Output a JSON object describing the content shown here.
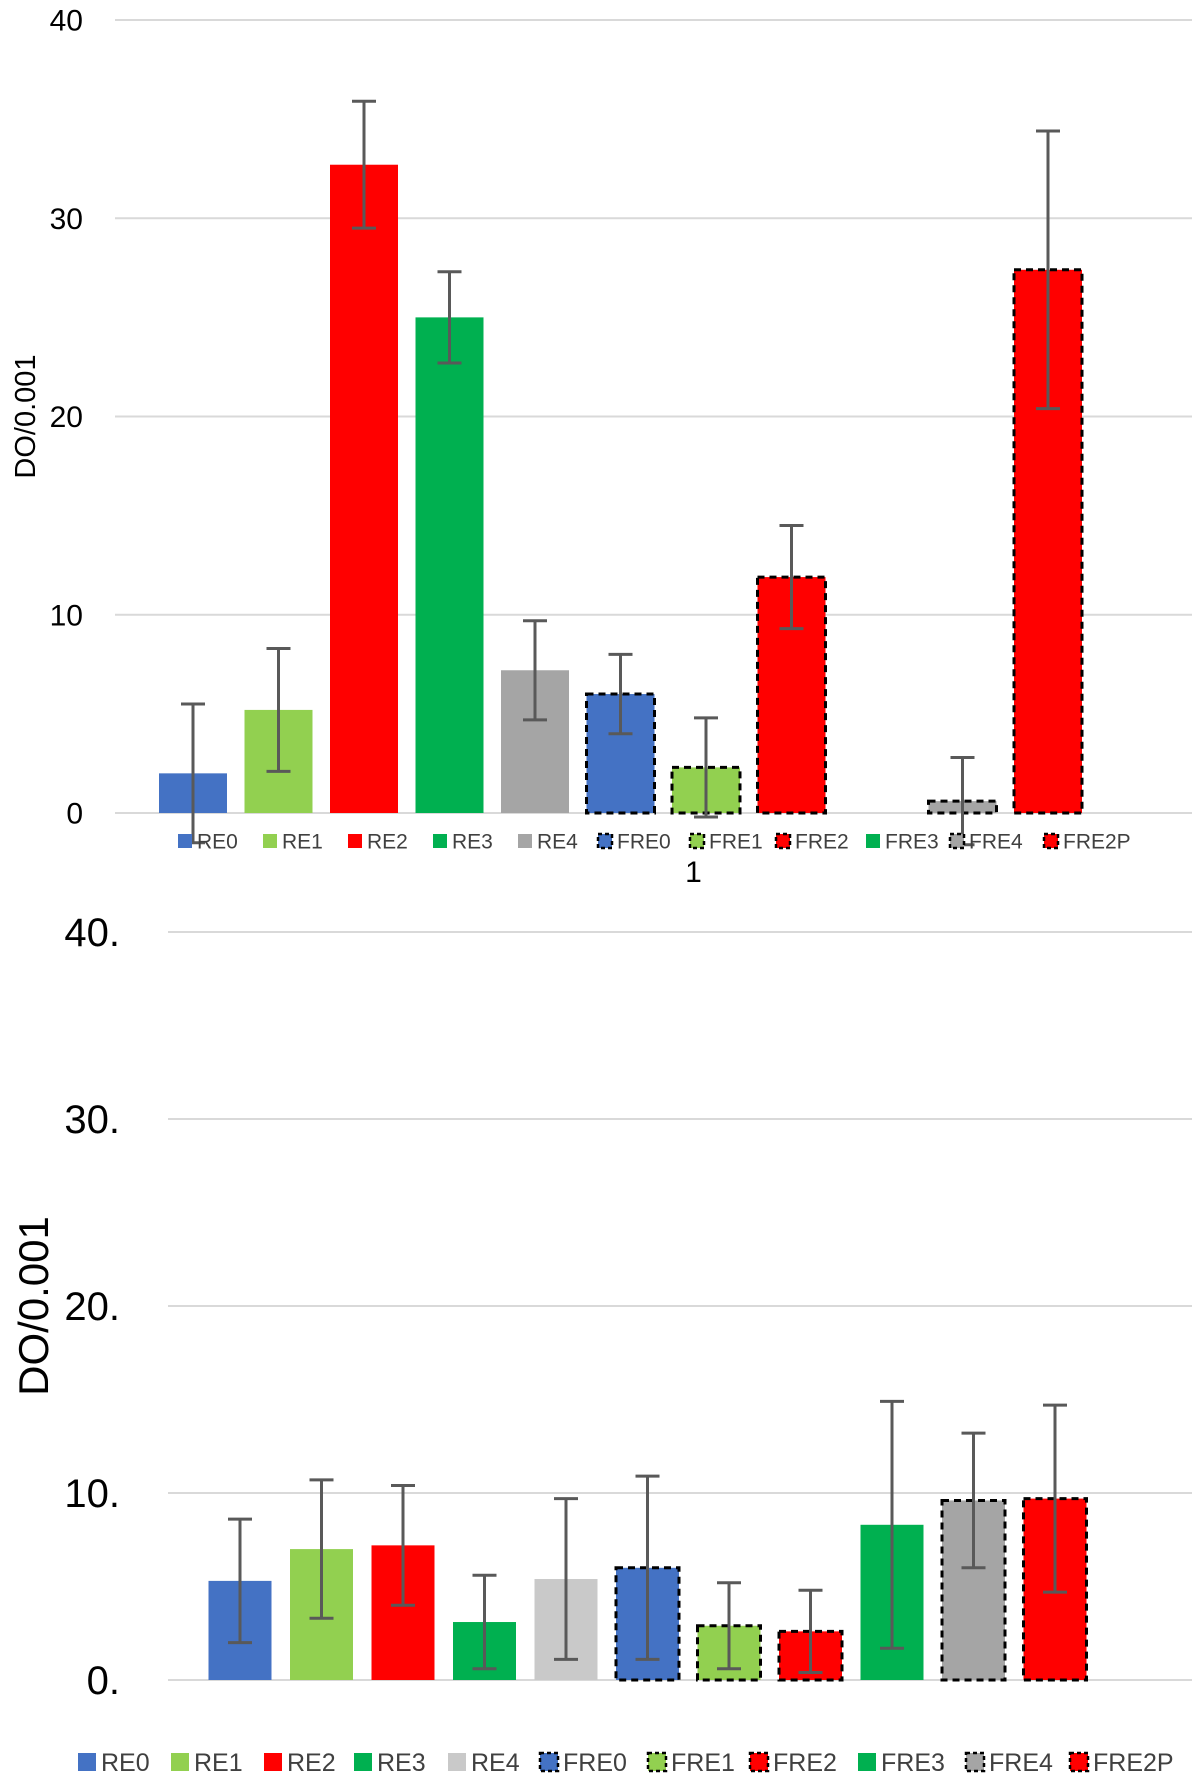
{
  "chart_data": [
    {
      "type": "bar",
      "ylabel": "DO/0.001",
      "xlabel": "1",
      "ylim": [
        0,
        40
      ],
      "yticks": [
        "0",
        "10",
        "20",
        "30",
        "40"
      ],
      "grid": true,
      "legend_position": "bottom",
      "series": [
        {
          "name": "RE0",
          "value": 2.0,
          "error": 3.5,
          "color": "#4472c4",
          "dashed": false
        },
        {
          "name": "RE1",
          "value": 5.2,
          "error": 3.1,
          "color": "#92d050",
          "dashed": false
        },
        {
          "name": "RE2",
          "value": 32.7,
          "error": 3.2,
          "color": "#ff0000",
          "dashed": false
        },
        {
          "name": "RE3",
          "value": 25.0,
          "error": 2.3,
          "color": "#00b050",
          "dashed": false
        },
        {
          "name": "RE4",
          "value": 7.2,
          "error": 2.5,
          "color": "#a5a5a5",
          "dashed": false
        },
        {
          "name": "FRE0",
          "value": 6.0,
          "error": 2.0,
          "color": "#4472c4",
          "dashed": true
        },
        {
          "name": "FRE1",
          "value": 2.3,
          "error": 2.5,
          "color": "#92d050",
          "dashed": true
        },
        {
          "name": "FRE2",
          "value": 11.9,
          "error": 2.6,
          "color": "#ff0000",
          "dashed": true
        },
        {
          "name": "FRE3",
          "value": 0,
          "error": 0,
          "color": "#00b050",
          "dashed": false
        },
        {
          "name": "FRE4",
          "value": 0.6,
          "error": 2.2,
          "color": "#a5a5a5",
          "dashed": true
        },
        {
          "name": "FRE2P",
          "value": 27.4,
          "error": 7.0,
          "color": "#ff0000",
          "dashed": true
        }
      ]
    },
    {
      "type": "bar",
      "ylabel": "DO/0.001",
      "xlabel": "",
      "ylim": [
        0,
        40
      ],
      "yticks": [
        "0.",
        "10.",
        "20.",
        "30.",
        "40."
      ],
      "grid": true,
      "legend_position": "bottom",
      "series": [
        {
          "name": "RE0",
          "value": 5.3,
          "error": 3.3,
          "color": "#4472c4",
          "dashed": false
        },
        {
          "name": "RE1",
          "value": 7.0,
          "error": 3.7,
          "color": "#92d050",
          "dashed": false
        },
        {
          "name": "RE2",
          "value": 7.2,
          "error": 3.2,
          "color": "#ff0000",
          "dashed": false
        },
        {
          "name": "RE3",
          "value": 3.1,
          "error": 2.5,
          "color": "#00b050",
          "dashed": false
        },
        {
          "name": "RE4",
          "value": 5.4,
          "error": 4.3,
          "color": "#c9c9c9",
          "dashed": false
        },
        {
          "name": "FRE0",
          "value": 6.0,
          "error": 4.9,
          "color": "#4472c4",
          "dashed": true
        },
        {
          "name": "FRE1",
          "value": 2.9,
          "error": 2.3,
          "color": "#92d050",
          "dashed": true
        },
        {
          "name": "FRE2",
          "value": 2.6,
          "error": 2.2,
          "color": "#ff0000",
          "dashed": true
        },
        {
          "name": "FRE3",
          "value": 8.3,
          "error": 6.6,
          "color": "#00b050",
          "dashed": false
        },
        {
          "name": "FRE4",
          "value": 9.6,
          "error": 3.6,
          "color": "#a5a5a5",
          "dashed": true
        },
        {
          "name": "FRE2P",
          "value": 9.7,
          "error": 5.0,
          "color": "#ff0000",
          "dashed": true
        }
      ]
    }
  ]
}
